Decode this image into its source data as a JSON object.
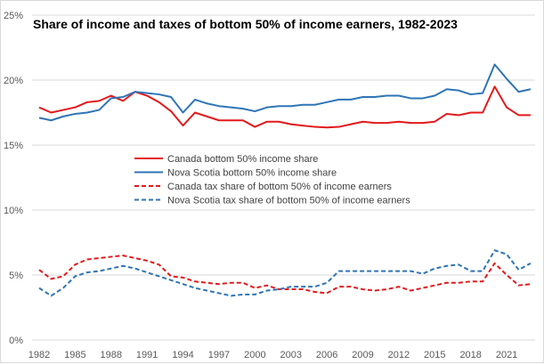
{
  "chart_data": {
    "type": "line",
    "title": "Share of income and taxes of bottom 50% of income earners, 1982-2023",
    "xlabel": "",
    "ylabel": "",
    "ylim": [
      0,
      25
    ],
    "yticks": [
      "0%",
      "5%",
      "10%",
      "15%",
      "20%",
      "25%"
    ],
    "ytick_values": [
      0,
      5,
      10,
      15,
      20,
      25
    ],
    "xticks": [
      "1982",
      "1985",
      "1988",
      "1991",
      "1994",
      "1997",
      "2000",
      "2003",
      "2006",
      "2009",
      "2012",
      "2015",
      "2018",
      "2021"
    ],
    "grid": true,
    "legend_position": "center",
    "x": [
      1982,
      1983,
      1984,
      1985,
      1986,
      1987,
      1988,
      1989,
      1990,
      1991,
      1992,
      1993,
      1994,
      1995,
      1996,
      1997,
      1998,
      1999,
      2000,
      2001,
      2002,
      2003,
      2004,
      2005,
      2006,
      2007,
      2008,
      2009,
      2010,
      2011,
      2012,
      2013,
      2014,
      2015,
      2016,
      2017,
      2018,
      2019,
      2020,
      2021,
      2022,
      2023
    ],
    "series": [
      {
        "name": "Canada bottom 50% income share",
        "color": "#e31a1c",
        "dashed": false,
        "values": [
          17.9,
          17.5,
          17.7,
          17.9,
          18.3,
          18.4,
          18.8,
          18.4,
          19.1,
          18.8,
          18.3,
          17.6,
          16.5,
          17.5,
          17.2,
          16.9,
          16.9,
          16.9,
          16.4,
          16.8,
          16.8,
          16.6,
          16.5,
          16.4,
          16.35,
          16.4,
          16.6,
          16.8,
          16.7,
          16.7,
          16.8,
          16.7,
          16.7,
          16.8,
          17.4,
          17.3,
          17.5,
          17.5,
          19.5,
          17.9,
          17.3,
          17.3
        ]
      },
      {
        "name": "Nova Scotia bottom 50% income share",
        "color": "#2e75b6",
        "dashed": false,
        "values": [
          17.1,
          16.9,
          17.2,
          17.4,
          17.5,
          17.7,
          18.6,
          18.7,
          19.1,
          19.0,
          18.9,
          18.7,
          17.5,
          18.5,
          18.2,
          18.0,
          17.9,
          17.8,
          17.6,
          17.9,
          18.0,
          18.0,
          18.1,
          18.1,
          18.3,
          18.5,
          18.5,
          18.7,
          18.7,
          18.8,
          18.8,
          18.6,
          18.6,
          18.8,
          19.3,
          19.2,
          18.9,
          19.0,
          21.2,
          20.1,
          19.1,
          19.3
        ]
      },
      {
        "name": "Canada tax share of bottom 50% of income earners",
        "color": "#e31a1c",
        "dashed": true,
        "values": [
          5.4,
          4.7,
          4.9,
          5.8,
          6.2,
          6.3,
          6.4,
          6.5,
          6.3,
          6.1,
          5.8,
          4.9,
          4.8,
          4.5,
          4.4,
          4.3,
          4.4,
          4.4,
          4.0,
          4.2,
          3.9,
          3.9,
          3.9,
          3.7,
          3.6,
          4.1,
          4.1,
          3.9,
          3.8,
          3.9,
          4.1,
          3.8,
          4.0,
          4.2,
          4.4,
          4.4,
          4.5,
          4.5,
          5.9,
          5.0,
          4.2,
          4.3
        ]
      },
      {
        "name": "Nova Scotia tax share of bottom 50% of income earners",
        "color": "#2e75b6",
        "dashed": true,
        "values": [
          4.0,
          3.4,
          4.0,
          4.9,
          5.2,
          5.3,
          5.5,
          5.7,
          5.5,
          5.2,
          4.9,
          4.6,
          4.3,
          4.0,
          3.8,
          3.6,
          3.4,
          3.5,
          3.5,
          3.8,
          3.9,
          4.1,
          4.1,
          4.1,
          4.4,
          5.3,
          5.3,
          5.3,
          5.3,
          5.3,
          5.3,
          5.3,
          5.1,
          5.5,
          5.7,
          5.8,
          5.3,
          5.3,
          6.9,
          6.6,
          5.4,
          5.9
        ]
      }
    ]
  }
}
